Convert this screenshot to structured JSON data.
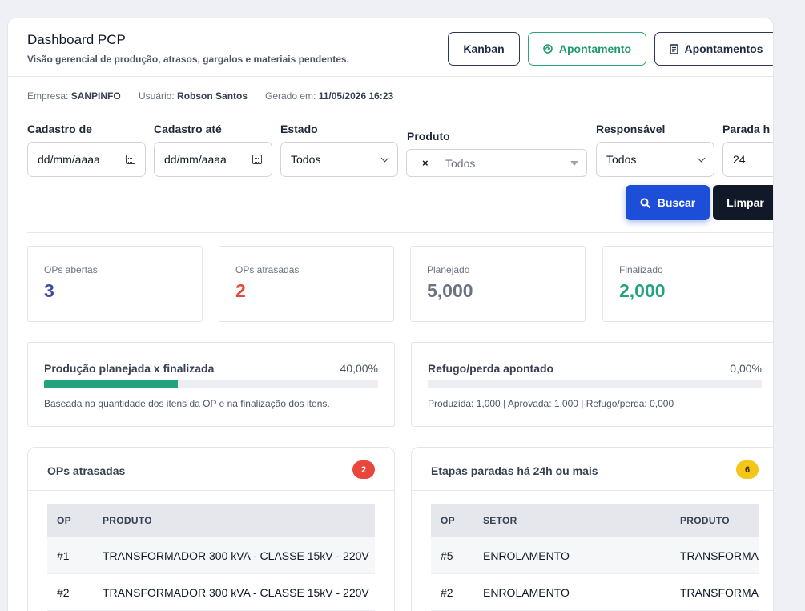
{
  "header": {
    "title": "Dashboard PCP",
    "subtitle": "Visão gerencial de produção, atrasos, gargalos e materiais pendentes.",
    "buttons": {
      "kanban": "Kanban",
      "apontamento": "Apontamento",
      "apontamentos": "Apontamentos"
    }
  },
  "meta": {
    "empresa_label": "Empresa:",
    "empresa": "SANPINFO",
    "usuario_label": "Usuário:",
    "usuario": "Robson Santos",
    "gerado_label": "Gerado em:",
    "gerado": "11/05/2026 16:23"
  },
  "filters": {
    "cadastro_de": {
      "label": "Cadastro de",
      "value": "dd/mm/aaaa"
    },
    "cadastro_ate": {
      "label": "Cadastro até",
      "value": "dd/mm/aaaa"
    },
    "estado": {
      "label": "Estado",
      "value": "Todos"
    },
    "produto": {
      "label": "Produto",
      "value": "Todos",
      "clear": "×"
    },
    "responsavel": {
      "label": "Responsável",
      "value": "Todos"
    },
    "parada": {
      "label": "Parada h",
      "value": "24"
    },
    "buscar": "Buscar",
    "limpar": "Limpar"
  },
  "kpis": [
    {
      "label": "OPs abertas",
      "value": "3",
      "color": "#3b4aa3"
    },
    {
      "label": "OPs atrasadas",
      "value": "2",
      "color": "#e5483a"
    },
    {
      "label": "Planejado",
      "value": "5,000",
      "color": "#6b7280"
    },
    {
      "label": "Finalizado",
      "value": "2,000",
      "color": "#21a37e"
    }
  ],
  "progress": [
    {
      "title": "Produção planejada x finalizada",
      "percent_text": "40,00%",
      "fraction": 0.4,
      "desc": "Baseada na quantidade dos itens da OP e na finalização dos itens."
    },
    {
      "title": "Refugo/perda apontado",
      "percent_text": "0,00%",
      "fraction": 0.0,
      "desc": "Produzida: 1,000 | Aprovada: 1,000 | Refugo/perda: 0,000"
    }
  ],
  "ops_atrasadas": {
    "title": "OPs atrasadas",
    "badge": "2",
    "badge_color": "#e8473b",
    "columns": [
      "OP",
      "PRODUTO"
    ],
    "rows": [
      [
        "#1",
        "TRANSFORMADOR 300 kVA - CLASSE 15kV - 220V"
      ],
      [
        "#2",
        "TRANSFORMADOR 300 kVA - CLASSE 15kV - 220V"
      ]
    ]
  },
  "etapas_paradas": {
    "title": "Etapas paradas há 24h ou mais",
    "badge": "6",
    "badge_color": "#f5c518",
    "columns": [
      "OP",
      "SETOR",
      "PRODUTO"
    ],
    "rows": [
      [
        "#5",
        "ENROLAMENTO",
        "TRANSFORMADOR"
      ],
      [
        "#2",
        "ENROLAMENTO",
        "TRANSFORMADOR"
      ]
    ]
  }
}
